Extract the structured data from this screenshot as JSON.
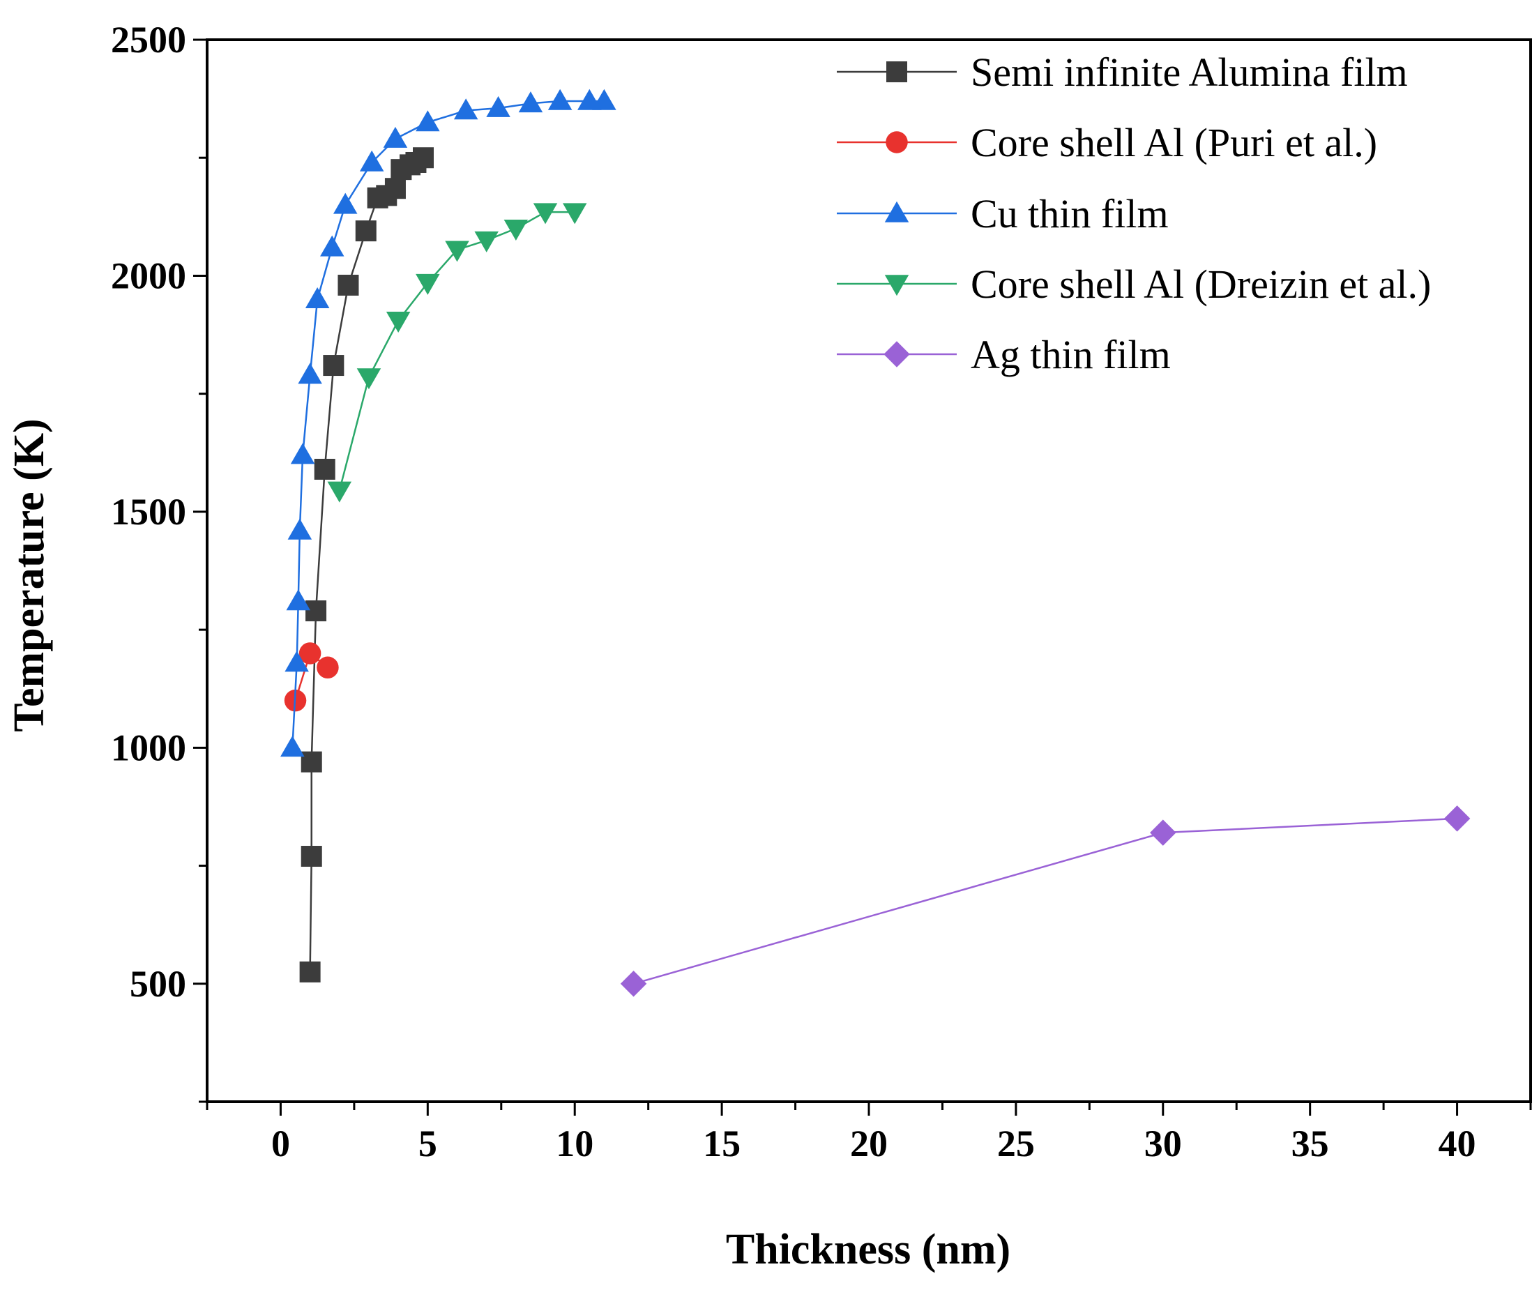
{
  "chart_data": {
    "type": "line",
    "xlabel": "Thickness (nm)",
    "ylabel": "Temperature (K)",
    "xlim": [
      -2.5,
      42.5
    ],
    "ylim": [
      250,
      2500
    ],
    "xticks": [
      0,
      5,
      10,
      15,
      20,
      25,
      30,
      35,
      40
    ],
    "yticks": [
      500,
      1000,
      1500,
      2000,
      2500
    ],
    "legend_position": "top-right",
    "series": [
      {
        "name": "Semi infinite Alumina film",
        "color": "#3c3c3c",
        "marker": "square",
        "x": [
          1.0,
          1.05,
          1.05,
          1.2,
          1.5,
          1.8,
          2.3,
          2.9,
          3.3,
          3.6,
          3.9,
          4.1,
          4.4,
          4.6,
          4.85
        ],
        "y": [
          525,
          770,
          970,
          1290,
          1590,
          1810,
          1980,
          2095,
          2165,
          2170,
          2185,
          2225,
          2235,
          2240,
          2250
        ]
      },
      {
        "name": "Core shell Al (Puri et al.)",
        "color": "#e8322e",
        "marker": "circle",
        "x": [
          0.5,
          1.0,
          1.6
        ],
        "y": [
          1100,
          1200,
          1170
        ]
      },
      {
        "name": "Cu thin film",
        "color": "#1f6fe0",
        "marker": "triangle-up",
        "x": [
          0.4,
          0.55,
          0.6,
          0.65,
          0.75,
          1.0,
          1.25,
          1.75,
          2.2,
          3.1,
          3.9,
          5.0,
          6.3,
          7.4,
          8.5,
          9.5,
          10.5,
          11.0
        ],
        "y": [
          1000,
          1180,
          1310,
          1460,
          1620,
          1790,
          1950,
          2060,
          2150,
          2240,
          2290,
          2325,
          2350,
          2355,
          2365,
          2370,
          2370,
          2370
        ]
      },
      {
        "name": "Core shell Al (Dreizin et al.)",
        "color": "#2aa86a",
        "marker": "triangle-down",
        "x": [
          2.0,
          3.0,
          4.0,
          5.0,
          6.0,
          7.0,
          8.0,
          9.0,
          10.0
        ],
        "y": [
          1545,
          1785,
          1905,
          1985,
          2055,
          2075,
          2100,
          2135,
          2135
        ]
      },
      {
        "name": "Ag thin film",
        "color": "#9a62d6",
        "marker": "diamond",
        "x": [
          12,
          30,
          40
        ],
        "y": [
          500,
          820,
          850
        ]
      }
    ]
  }
}
